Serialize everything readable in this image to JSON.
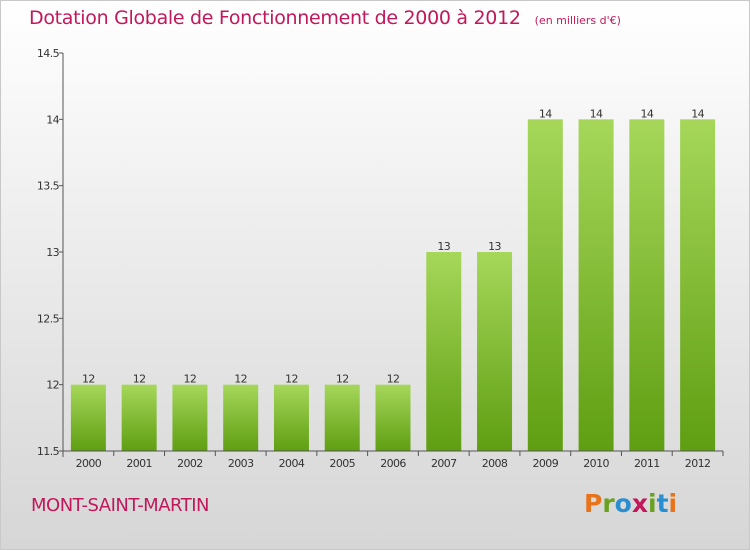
{
  "header": {
    "title": "Dotation Globale de Fonctionnement de 2000 à 2012",
    "unit": "(en milliers d'€)"
  },
  "footer": {
    "commune": "MONT-SAINT-MARTIN",
    "logo": "Proxiti"
  },
  "colors": {
    "title": "#c2185b",
    "bar_light": "#a6d75a",
    "bar_dark": "#5f9e12",
    "axis": "#555555",
    "logo_letters": [
      "#e8731a",
      "#6aa121",
      "#2a8fd0",
      "#c2185b",
      "#6aa121",
      "#2a8fd0",
      "#e8731a"
    ]
  },
  "chart_data": {
    "type": "bar",
    "title": "Dotation Globale de Fonctionnement de 2000 à 2012",
    "xlabel": "",
    "ylabel": "",
    "categories": [
      "2000",
      "2001",
      "2002",
      "2003",
      "2004",
      "2005",
      "2006",
      "2007",
      "2008",
      "2009",
      "2010",
      "2011",
      "2012"
    ],
    "values": [
      12,
      12,
      12,
      12,
      12,
      12,
      12,
      13,
      13,
      14,
      14,
      14,
      14
    ],
    "value_labels": [
      "12",
      "12",
      "12",
      "12",
      "12",
      "12",
      "12",
      "13",
      "13",
      "14",
      "14",
      "14",
      "14"
    ],
    "ylim": [
      11.5,
      14.5
    ],
    "yticks": [
      11.5,
      12,
      12.5,
      13,
      13.5,
      14,
      14.5
    ],
    "ytick_labels": [
      "11.5",
      "12",
      "12.5",
      "13",
      "13.5",
      "14",
      "14.5"
    ],
    "grid": false,
    "legend": "none"
  }
}
